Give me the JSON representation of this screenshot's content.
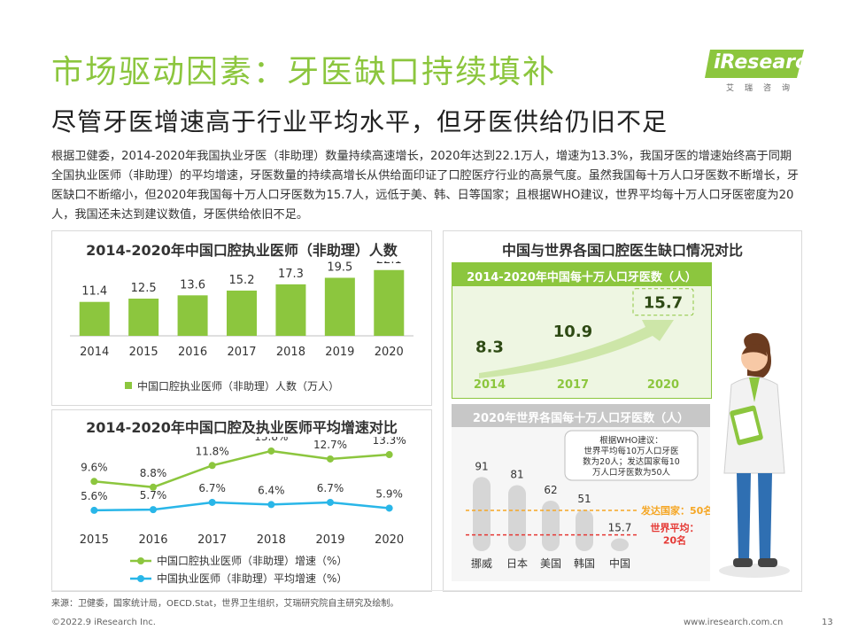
{
  "header": {
    "title": "市场驱动因素：牙医缺口持续填补",
    "subtitle": "尽管牙医增速高于行业平均水平，但牙医供给仍旧不足",
    "logo": "iResearch",
    "logo_sub": "艾瑞咨询"
  },
  "intro": "根据卫健委，2014-2020年我国执业牙医（非助理）数量持续高速增长，2020年达到22.1万人，增速为13.3%，我国牙医的增速始终高于同期全国执业医师（非助理）的平均增速，牙医数量的持续高增长从供给面印证了口腔医疗行业的高景气度。虽然我国每十万人口牙医数不断增长，牙医缺口不断缩小，但2020年我国每十万人口牙医数为15.7人，远低于美、韩、日等国家；且根据WHO建议，世界平均每十万人口牙医密度为20人，我国还未达到建议数值，牙医供给依旧不足。",
  "footer": {
    "source": "来源：卫健委，国家统计局，OECD.Stat，世界卫生组织，艾瑞研究院自主研究及绘制。",
    "copyright": "©2022.9 iResearch Inc.",
    "url": "www.iresearch.com.cn",
    "page": "13"
  },
  "colors": {
    "green": "#8cc63e",
    "blue": "#29b6e8",
    "grey": "#d9d9d9",
    "red": "#e53935",
    "orange": "#f5a623"
  },
  "icons": {
    "illustration": "doctor-with-clipboard-illustration"
  },
  "chart_data": [
    {
      "type": "bar",
      "title": "2014-2020年中国口腔执业医师（非助理）人数",
      "categories": [
        "2014",
        "2015",
        "2016",
        "2017",
        "2018",
        "2019",
        "2020"
      ],
      "series": [
        {
          "name": "中国口腔执业医师（非助理）人数（万人）",
          "values": [
            11.4,
            12.5,
            13.6,
            15.2,
            17.3,
            19.5,
            22.1
          ]
        }
      ],
      "value_labels": [
        "11.4",
        "12.5",
        "13.6",
        "15.2",
        "17.3",
        "19.5",
        "22.1"
      ],
      "ylim": [
        0,
        25
      ],
      "legend": "bottom"
    },
    {
      "type": "line",
      "title": "2014-2020年中国口腔及执业医师平均增速对比",
      "categories": [
        "2015",
        "2016",
        "2017",
        "2018",
        "2019",
        "2020"
      ],
      "series": [
        {
          "name": "中国口腔执业医师（非助理）增速（%）",
          "values": [
            9.6,
            8.8,
            11.8,
            13.8,
            12.7,
            13.3
          ],
          "labels": [
            "9.6%",
            "8.8%",
            "11.8%",
            "13.8%",
            "12.7%",
            "13.3%"
          ]
        },
        {
          "name": "中国执业医师（非助理）平均增速（%）",
          "values": [
            5.6,
            5.7,
            6.7,
            6.4,
            6.7,
            5.9
          ],
          "labels": [
            "5.6%",
            "5.7%",
            "6.7%",
            "6.4%",
            "6.7%",
            "5.9%"
          ]
        }
      ],
      "ylim": [
        4,
        16
      ],
      "legend": "bottom"
    },
    {
      "type": "line",
      "title": "2014-2020年中国每十万人口牙医数（人）",
      "categories": [
        "2014",
        "2017",
        "2020"
      ],
      "values": [
        8.3,
        10.9,
        15.7
      ],
      "labels": [
        "8.3",
        "10.9",
        "15.7"
      ]
    },
    {
      "type": "bar",
      "title": "2020年世界各国每十万人口牙医数（人）",
      "categories": [
        "挪威",
        "日本",
        "美国",
        "韩国",
        "中国"
      ],
      "values": [
        91,
        81,
        62,
        51,
        15.7
      ],
      "value_labels": [
        "91",
        "81",
        "62",
        "51",
        "15.7"
      ],
      "ylim": [
        0,
        100
      ],
      "reference_lines": [
        {
          "label": "发达国家：50名",
          "value": 50
        },
        {
          "label": "世界平均：20名",
          "value": 20
        }
      ],
      "annotation": "根据WHO建议：世界平均每10万人口牙医数为20人；发达国家每10万人口牙医数为50人",
      "annotation_lines": [
        "根据WHO建议：",
        "世界平均每10万人口牙医",
        "数为20人；发达国家每10",
        "万人口牙医数为50人"
      ]
    }
  ],
  "panel_titles": {
    "right": "中国与世界各国口腔医生缺口情况对比"
  }
}
